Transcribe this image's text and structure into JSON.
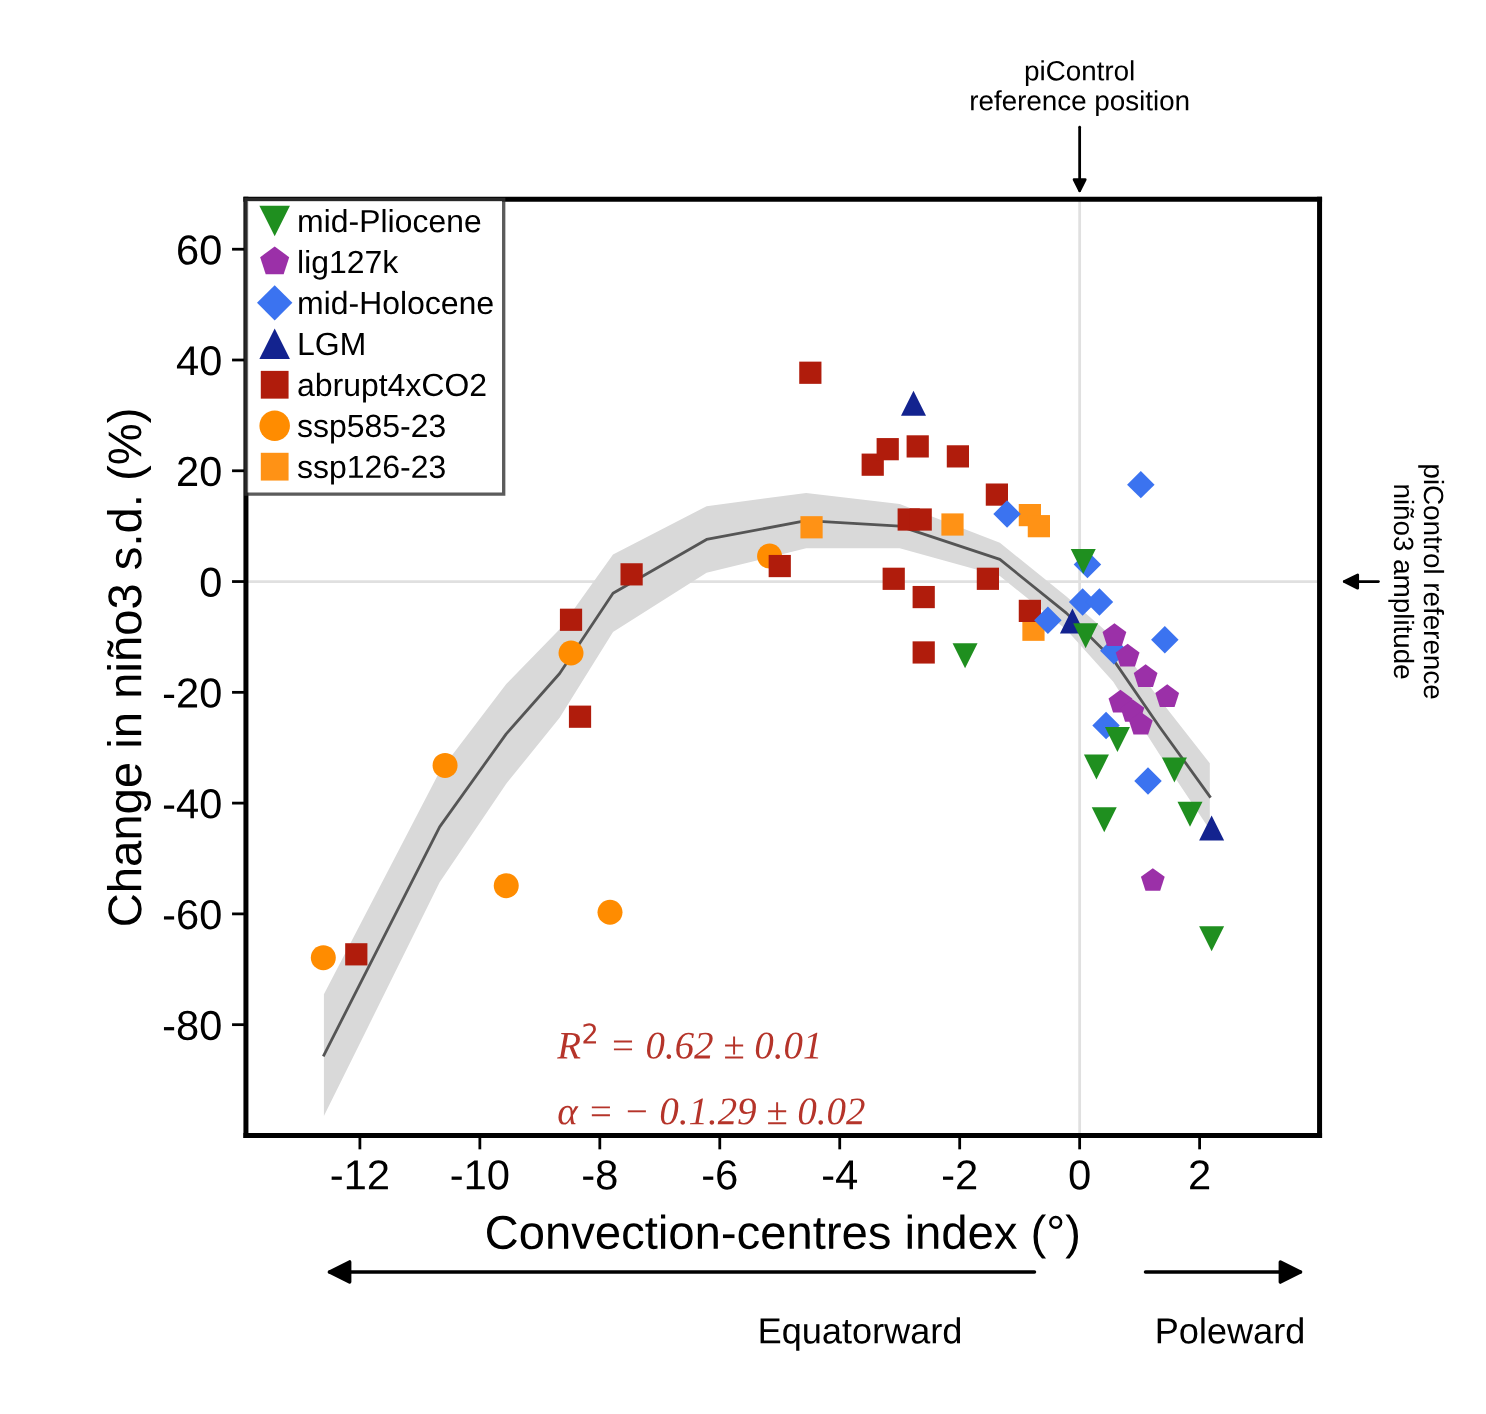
{
  "chart_data": {
    "type": "scatter",
    "xlabel": "Convection-centres index (°)",
    "ylabel": "Change in niño3 s.d. (%)",
    "xlim": [
      -13.9,
      4.0
    ],
    "xticks": [
      -12,
      -10,
      -8,
      -6,
      -4,
      -2,
      0,
      2
    ],
    "ylim": [
      -100,
      69
    ],
    "yticks": [
      -80,
      -60,
      -40,
      -20,
      0,
      20,
      40,
      60
    ],
    "grid": false,
    "legend": "top left",
    "ref_lines": [
      {
        "axis": "x",
        "value": 0,
        "label": "piControl\nreference position",
        "color": "#e0e0e0"
      },
      {
        "axis": "y",
        "value": 0,
        "label": "piControl reference\nniño3 amplitude",
        "color": "#e0e0e0"
      }
    ],
    "annotations": [
      "R$^{2}$ = 0.62 ± 0.01",
      "α = − 0.1.29 ± 0.02",
      "Equatorward",
      "Poleward"
    ],
    "series": [
      {
        "type": "line",
        "color": "#555555",
        "x": [
          -12.6,
          -10.67,
          -9.56,
          -8.67,
          -7.78,
          -6.22,
          -4.56,
          -3.0,
          -1.33,
          -0.22,
          0.56,
          1.33,
          2.17
        ],
        "values": [
          -85.5,
          -44.3,
          -27.5,
          -16.6,
          -2.1,
          7.6,
          11.0,
          10.0,
          4.0,
          -5.7,
          -14.1,
          -26.2,
          -38.8
        ],
        "lower": [
          -96.5,
          -54.3,
          -36.5,
          -24.6,
          -9.1,
          1.6,
          6.0,
          6.0,
          1.0,
          -8.7,
          -18.1,
          -31.2,
          -44.8
        ],
        "upper": [
          -74.5,
          -34.3,
          -18.5,
          -8.6,
          4.9,
          13.6,
          16.0,
          14.0,
          7.0,
          -2.7,
          -10.1,
          -21.2,
          -32.8
        ],
        "marker": "none"
      },
      {
        "name": "mid-Pliocene",
        "color": "#1f8f1f",
        "marker": "triangle_down",
        "x": [
          0.06,
          0.1,
          -1.91,
          0.63,
          0.28,
          1.58,
          0.41,
          1.84,
          2.2
        ],
        "values": [
          3.6,
          -9.8,
          -13.4,
          -28.5,
          -33.5,
          -34.0,
          -43.0,
          -42.0,
          -64.5
        ]
      },
      {
        "name": "lig127k",
        "color": "#9b30a8",
        "x": [
          0.58,
          0.8,
          1.1,
          1.46,
          0.68,
          0.88,
          1.02,
          1.22
        ],
        "values": [
          -9.8,
          -13.5,
          -17.2,
          -20.8,
          -21.8,
          -23.5,
          -25.8,
          -54.0
        ]
      },
      {
        "name": "mid-Holocene",
        "color": "#3b73f0",
        "marker": "diamond",
        "x": [
          -1.21,
          1.02,
          0.13,
          0.05,
          0.33,
          -0.53,
          0.57,
          1.42,
          0.44,
          1.14
        ],
        "values": [
          12.2,
          17.5,
          3.1,
          -3.7,
          -3.7,
          -7.0,
          -12.5,
          -10.5,
          -26.0,
          -36.0
        ]
      },
      {
        "name": "LGM",
        "color": "#13238f",
        "marker": "triangle",
        "x": [
          -2.77,
          -0.12,
          2.2
        ],
        "values": [
          32.2,
          -7.1,
          -44.5
        ]
      },
      {
        "name": "abrupt4xCO2",
        "color": "#b01c0c",
        "marker": "square",
        "x": [
          -4.49,
          -3.45,
          -3.2,
          -2.7,
          -2.03,
          -1.38,
          -2.85,
          -2.65,
          -3.1,
          -2.6,
          -1.53,
          -0.83,
          -2.6,
          -7.47,
          -8.48,
          -5.0,
          -8.33,
          -12.06
        ],
        "values": [
          37.7,
          21.1,
          23.9,
          24.4,
          22.6,
          15.7,
          11.2,
          11.2,
          0.5,
          -2.8,
          0.5,
          -5.3,
          -12.8,
          1.3,
          -6.9,
          2.8,
          -24.4,
          -67.3
        ]
      },
      {
        "name": "ssp585-23",
        "color": "#ff8c00",
        "marker": "circle",
        "x": [
          -5.17,
          -8.48,
          -10.58,
          -9.56,
          -7.83,
          -12.61
        ],
        "values": [
          4.6,
          -12.9,
          -33.2,
          -54.9,
          -59.7,
          -67.9
        ]
      },
      {
        "name": "ssp126-23",
        "color": "#ff9215",
        "marker": "square",
        "x": [
          -4.47,
          -2.12,
          -0.83,
          -0.68,
          -0.77
        ],
        "values": [
          9.8,
          10.3,
          12.0,
          10.0,
          -8.7
        ]
      }
    ]
  }
}
